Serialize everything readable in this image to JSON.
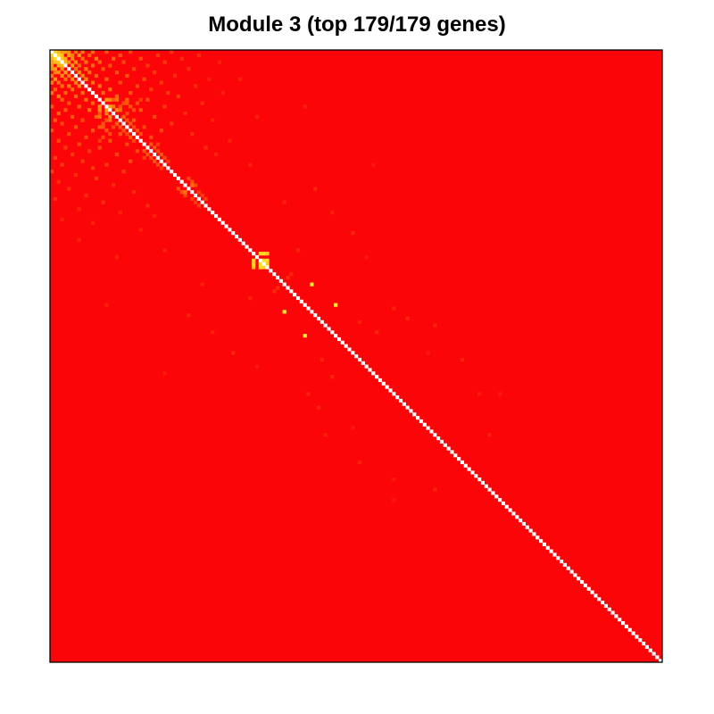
{
  "chart_data": {
    "type": "heatmap",
    "title": "Module 3 (top 179/179 genes)",
    "xlabel": "",
    "ylabel": "",
    "n_genes": 179,
    "symmetric": true,
    "diagonal_color": "#ffffff",
    "colors": {
      "background": "#fc0509",
      "low": "#fc0509",
      "mid": "#ff8a10",
      "high": "#ffef2a",
      "border": "#000000"
    },
    "value_range": [
      0,
      1
    ],
    "background_value": 0.0,
    "cells": [
      [
        1,
        0,
        0.85
      ],
      [
        2,
        0,
        0.7
      ],
      [
        2,
        1,
        0.9
      ],
      [
        3,
        0,
        0.6
      ],
      [
        3,
        1,
        0.75
      ],
      [
        3,
        2,
        0.8
      ],
      [
        4,
        0,
        0.55
      ],
      [
        4,
        2,
        0.65
      ],
      [
        4,
        3,
        0.7
      ],
      [
        5,
        0,
        0.5
      ],
      [
        5,
        1,
        0.6
      ],
      [
        5,
        3,
        0.55
      ],
      [
        6,
        1,
        0.45
      ],
      [
        6,
        2,
        0.5
      ],
      [
        6,
        4,
        0.6
      ],
      [
        7,
        0,
        0.4
      ],
      [
        7,
        3,
        0.5
      ],
      [
        7,
        5,
        0.45
      ],
      [
        8,
        1,
        0.55
      ],
      [
        8,
        4,
        0.4
      ],
      [
        8,
        6,
        0.5
      ],
      [
        9,
        0,
        0.45
      ],
      [
        9,
        2,
        0.4
      ],
      [
        9,
        7,
        0.5
      ],
      [
        10,
        3,
        0.4
      ],
      [
        10,
        5,
        0.45
      ],
      [
        10,
        8,
        0.5
      ],
      [
        11,
        1,
        0.35
      ],
      [
        11,
        6,
        0.4
      ],
      [
        12,
        0,
        0.4
      ],
      [
        12,
        4,
        0.35
      ],
      [
        12,
        9,
        0.4
      ],
      [
        13,
        2,
        0.45
      ],
      [
        13,
        7,
        0.35
      ],
      [
        14,
        3,
        0.35
      ],
      [
        14,
        10,
        0.4
      ],
      [
        15,
        5,
        0.3
      ],
      [
        15,
        12,
        0.35
      ],
      [
        16,
        0,
        0.3
      ],
      [
        16,
        8,
        0.35
      ],
      [
        17,
        4,
        0.3
      ],
      [
        17,
        11,
        0.4
      ],
      [
        18,
        2,
        0.35
      ],
      [
        18,
        14,
        0.3
      ],
      [
        19,
        6,
        0.3
      ],
      [
        19,
        13,
        0.35
      ],
      [
        20,
        1,
        0.3
      ],
      [
        20,
        9,
        0.25
      ],
      [
        20,
        16,
        0.3
      ],
      [
        21,
        3,
        0.25
      ],
      [
        21,
        15,
        0.3
      ],
      [
        22,
        7,
        0.3
      ],
      [
        22,
        18,
        0.25
      ],
      [
        23,
        0,
        0.25
      ],
      [
        23,
        12,
        0.3
      ],
      [
        24,
        5,
        0.25
      ],
      [
        24,
        20,
        0.3
      ],
      [
        25,
        10,
        0.25
      ],
      [
        26,
        2,
        0.25
      ],
      [
        26,
        17,
        0.3
      ],
      [
        27,
        8,
        0.25
      ],
      [
        27,
        22,
        0.25
      ],
      [
        28,
        4,
        0.2
      ],
      [
        28,
        14,
        0.25
      ],
      [
        29,
        11,
        0.2
      ],
      [
        29,
        25,
        0.25
      ],
      [
        30,
        6,
        0.2
      ],
      [
        30,
        19,
        0.25
      ],
      [
        31,
        1,
        0.2
      ],
      [
        31,
        27,
        0.2
      ],
      [
        32,
        9,
        0.2
      ],
      [
        32,
        23,
        0.25
      ],
      [
        33,
        3,
        0.2
      ],
      [
        33,
        16,
        0.2
      ],
      [
        34,
        12,
        0.2
      ],
      [
        35,
        0,
        0.2
      ],
      [
        35,
        21,
        0.2
      ],
      [
        36,
        7,
        0.15
      ],
      [
        37,
        13,
        0.2
      ],
      [
        38,
        2,
        0.15
      ],
      [
        39,
        18,
        0.15
      ],
      [
        40,
        5,
        0.15
      ],
      [
        41,
        24,
        0.15
      ],
      [
        42,
        10,
        0.15
      ],
      [
        43,
        1,
        0.15
      ],
      [
        44,
        15,
        0.15
      ],
      [
        45,
        28,
        0.15
      ],
      [
        46,
        8,
        0.1
      ],
      [
        47,
        20,
        0.1
      ],
      [
        48,
        30,
        0.1
      ],
      [
        16,
        14,
        0.55
      ],
      [
        17,
        14,
        0.5
      ],
      [
        17,
        16,
        0.6
      ],
      [
        18,
        16,
        0.45
      ],
      [
        19,
        14,
        0.4
      ],
      [
        19,
        17,
        0.5
      ],
      [
        20,
        17,
        0.4
      ],
      [
        21,
        19,
        0.35
      ],
      [
        22,
        20,
        0.3
      ],
      [
        23,
        21,
        0.3
      ],
      [
        24,
        22,
        0.25
      ],
      [
        25,
        23,
        0.3
      ],
      [
        26,
        24,
        0.25
      ],
      [
        22,
        14,
        0.35
      ],
      [
        22,
        15,
        0.3
      ],
      [
        23,
        16,
        0.3
      ],
      [
        24,
        17,
        0.25
      ],
      [
        25,
        15,
        0.25
      ],
      [
        26,
        14,
        0.2
      ],
      [
        29,
        27,
        0.3
      ],
      [
        30,
        28,
        0.3
      ],
      [
        31,
        29,
        0.25
      ],
      [
        32,
        30,
        0.3
      ],
      [
        33,
        31,
        0.25
      ],
      [
        34,
        32,
        0.2
      ],
      [
        40,
        37,
        0.25
      ],
      [
        41,
        38,
        0.3
      ],
      [
        42,
        39,
        0.25
      ],
      [
        43,
        41,
        0.2
      ],
      [
        44,
        42,
        0.2
      ],
      [
        45,
        43,
        0.2
      ],
      [
        49,
        3,
        0.1
      ],
      [
        50,
        12,
        0.1
      ],
      [
        52,
        26,
        0.1
      ],
      [
        55,
        8,
        0.1
      ],
      [
        58,
        33,
        0.1
      ],
      [
        60,
        19,
        0.1
      ],
      [
        41,
        39,
        0.4
      ],
      [
        61,
        59,
        0.85
      ],
      [
        62,
        59,
        0.9
      ],
      [
        62,
        61,
        0.95
      ],
      [
        63,
        59,
        0.8
      ],
      [
        63,
        61,
        0.9
      ],
      [
        63,
        62,
        0.85
      ],
      [
        69,
        66,
        0.15
      ],
      [
        70,
        65,
        0.12
      ],
      [
        72,
        58,
        0.1
      ],
      [
        76,
        68,
        1.0
      ],
      [
        83,
        74,
        1.0
      ],
      [
        90,
        79,
        0.1
      ],
      [
        95,
        82,
        0.12
      ],
      [
        92,
        60,
        0.08
      ],
      [
        100,
        75,
        0.1
      ],
      [
        104,
        78,
        0.12
      ],
      [
        110,
        88,
        0.08
      ],
      [
        112,
        80,
        0.1
      ],
      [
        120,
        90,
        0.1
      ],
      [
        125,
        100,
        0.08
      ],
      [
        128,
        112,
        0.1
      ],
      [
        131,
        100,
        0.08
      ],
      [
        77,
        40,
        0.12
      ],
      [
        82,
        47,
        0.1
      ],
      [
        88,
        53,
        0.12
      ],
      [
        94,
        33,
        0.08
      ],
      [
        74,
        16,
        0.1
      ],
      [
        68,
        44,
        0.1
      ]
    ]
  }
}
